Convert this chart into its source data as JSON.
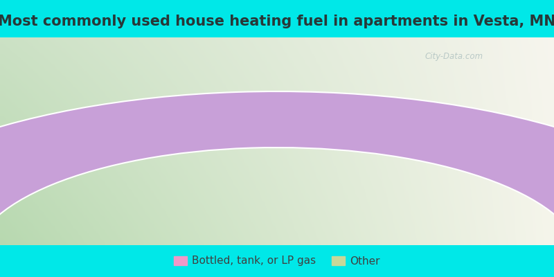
{
  "title": "Most commonly used house heating fuel in apartments in Vesta, MN",
  "slices": [
    {
      "label": "Bottled, tank, or LP gas",
      "value": 170,
      "color": "#c8a0d8"
    },
    {
      "label": "Other",
      "value": 10,
      "color": "#b8c49a"
    }
  ],
  "legend_marker_colors": [
    "#f099c8",
    "#c8d899"
  ],
  "bg_cyan": "#00e8e8",
  "bg_grad_left": "#b8d8b0",
  "bg_grad_right": "#f0f0e8",
  "bg_grad_center": "#e8f0e0",
  "title_color": "#283838",
  "title_fontsize": 15,
  "watermark_text": "City-Data.com",
  "wedge_edgecolor": "white",
  "wedge_linewidth": 1.5,
  "legend_fontsize": 11,
  "legend_textcolor": "#404040"
}
